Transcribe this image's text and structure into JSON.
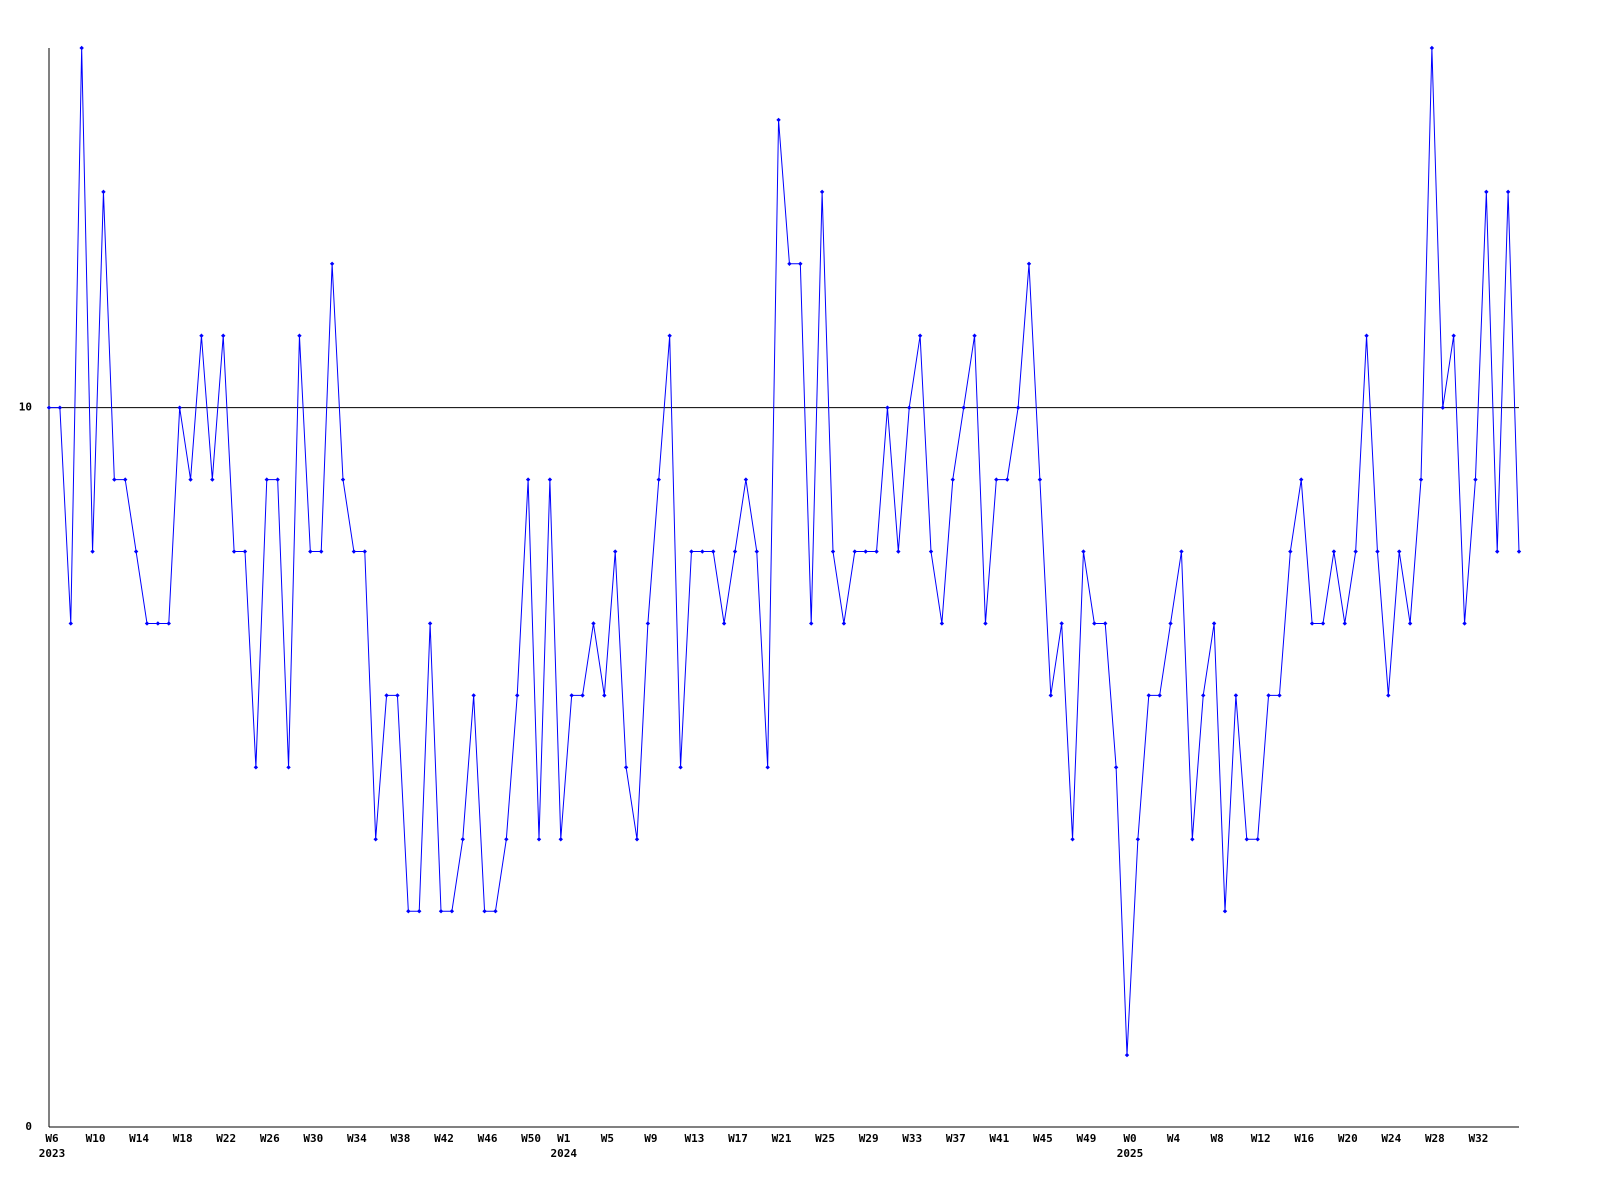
{
  "chart_data": {
    "type": "line",
    "categories": [
      "W6",
      null,
      null,
      null,
      "W10",
      null,
      null,
      null,
      "W14",
      null,
      null,
      null,
      "W18",
      null,
      null,
      null,
      "W22",
      null,
      null,
      null,
      "W26",
      null,
      null,
      null,
      "W30",
      null,
      null,
      null,
      "W34",
      null,
      null,
      null,
      "W38",
      null,
      null,
      null,
      "W42",
      null,
      null,
      null,
      "W46",
      null,
      null,
      null,
      "W50",
      null,
      null,
      "W1",
      null,
      null,
      null,
      "W5",
      null,
      null,
      null,
      "W9",
      null,
      null,
      null,
      "W13",
      null,
      null,
      null,
      "W17",
      null,
      null,
      null,
      "W21",
      null,
      null,
      null,
      "W25",
      null,
      null,
      null,
      "W29",
      null,
      null,
      null,
      "W33",
      null,
      null,
      null,
      "W37",
      null,
      null,
      null,
      "W41",
      null,
      null,
      null,
      "W45",
      null,
      null,
      null,
      "W49",
      null,
      null,
      null,
      "W0",
      null,
      null,
      null,
      "W4",
      null,
      null,
      null,
      "W8",
      null,
      null,
      null,
      "W12",
      null,
      null,
      null,
      "W16",
      null,
      null,
      null,
      "W20",
      null,
      null,
      null,
      "W24",
      null,
      null,
      null,
      "W28",
      null,
      null,
      null,
      "W32",
      null,
      null,
      null,
      null
    ],
    "x_group_labels": [
      "2023",
      null,
      null,
      null,
      null,
      null,
      null,
      null,
      null,
      null,
      null,
      null,
      null,
      null,
      null,
      null,
      null,
      null,
      null,
      null,
      null,
      null,
      null,
      null,
      null,
      null,
      null,
      null,
      null,
      null,
      null,
      null,
      null,
      null,
      null,
      null,
      null,
      null,
      null,
      null,
      null,
      null,
      null,
      null,
      null,
      null,
      null,
      "2024",
      null,
      null,
      null,
      null,
      null,
      null,
      null,
      null,
      null,
      null,
      null,
      null,
      null,
      null,
      null,
      null,
      null,
      null,
      null,
      null,
      null,
      null,
      null,
      null,
      null,
      null,
      null,
      null,
      null,
      null,
      null,
      null,
      null,
      null,
      null,
      null,
      null,
      null,
      null,
      null,
      null,
      null,
      null,
      null,
      null,
      null,
      null,
      null,
      null,
      null,
      null,
      "2025",
      null,
      null,
      null,
      null,
      null,
      null,
      null,
      null,
      null,
      null,
      null,
      null,
      null,
      null,
      null,
      null,
      null,
      null,
      null,
      null,
      null,
      null,
      null,
      null,
      null,
      null,
      null,
      null,
      null,
      null,
      null,
      null,
      null,
      null,
      null,
      null
    ],
    "series": [
      {
        "color": "#0000ff",
        "values": [
          10,
          10,
          7,
          15,
          8,
          13,
          9,
          9,
          8,
          7,
          7,
          7,
          10,
          9,
          11,
          9,
          11,
          8,
          8,
          5,
          9,
          9,
          5,
          11,
          8,
          8,
          12,
          9,
          8,
          8,
          4,
          6,
          6,
          3,
          3,
          7,
          3,
          3,
          4,
          6,
          3,
          3,
          4,
          6,
          9,
          4,
          9,
          4,
          6,
          6,
          7,
          6,
          8,
          5,
          4,
          7,
          9,
          11,
          5,
          8,
          8,
          8,
          7,
          8,
          9,
          8,
          5,
          14,
          12,
          12,
          7,
          13,
          8,
          7,
          8,
          8,
          8,
          10,
          8,
          10,
          11,
          8,
          7,
          9,
          10,
          11,
          7,
          9,
          9,
          10,
          12,
          9,
          6,
          7,
          4,
          8,
          7,
          7,
          5,
          1,
          4,
          6,
          6,
          7,
          8,
          4,
          6,
          7,
          3,
          6,
          4,
          4,
          6,
          6,
          8,
          9,
          7,
          7,
          8,
          7,
          8,
          11,
          8,
          6,
          8,
          7,
          9,
          15,
          10,
          11,
          7,
          9,
          13,
          8,
          13,
          8
        ]
      }
    ],
    "ylim": [
      0,
      15
    ],
    "yticks": [
      0,
      10
    ],
    "grid": true
  }
}
